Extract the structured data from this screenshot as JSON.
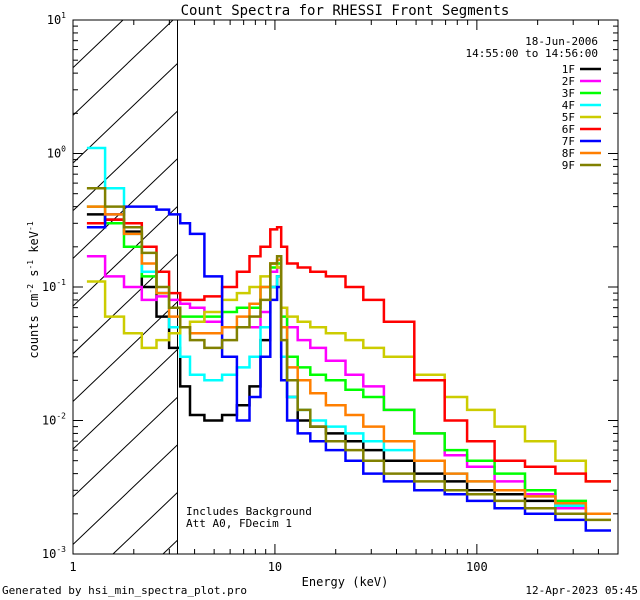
{
  "chart_data": {
    "type": "line",
    "title": "Count Spectra for RHESSI Front Segments",
    "xlabel": "Energy (keV)",
    "ylabel_base": "counts cm",
    "ylabel_parts": [
      "counts cm",
      "-2",
      " s",
      "-1",
      " keV",
      "-1"
    ],
    "x_scale": "log",
    "y_scale": "log",
    "xlim": [
      1,
      500
    ],
    "ylim": [
      0.001,
      10
    ],
    "x_ticks": [
      {
        "value": 1,
        "label": "1"
      },
      {
        "value": 10,
        "label": "10"
      },
      {
        "value": 100,
        "label": "100"
      }
    ],
    "y_ticks": [
      {
        "value": 0.001,
        "base": "10",
        "exp": "-3"
      },
      {
        "value": 0.01,
        "base": "10",
        "exp": "-2"
      },
      {
        "value": 0.1,
        "base": "10",
        "exp": "-1"
      },
      {
        "value": 1,
        "base": "10",
        "exp": "0"
      },
      {
        "value": 10,
        "base": "10",
        "exp": "1"
      }
    ],
    "date": "18-Jun-2006",
    "time_range": "14:55:00 to 14:56:00",
    "hatched_region_keV": [
      1,
      3
    ],
    "annotations": [
      "Includes Background",
      "Att A0, FDecim 1"
    ],
    "series": [
      {
        "name": "1F",
        "color": "#000000",
        "x": [
          1.3,
          1.6,
          2,
          2.4,
          2.8,
          3.2,
          3.6,
          4,
          5,
          6,
          7,
          8,
          9,
          10,
          10.5,
          11,
          12,
          14,
          16,
          20,
          25,
          30,
          40,
          60,
          80,
          100,
          150,
          200,
          300,
          400
        ],
        "y": [
          0.35,
          0.32,
          0.26,
          0.1,
          0.06,
          0.035,
          0.018,
          0.011,
          0.01,
          0.011,
          0.013,
          0.018,
          0.04,
          0.1,
          0.12,
          0.03,
          0.015,
          0.01,
          0.009,
          0.008,
          0.007,
          0.006,
          0.005,
          0.004,
          0.0035,
          0.003,
          0.0028,
          0.0025,
          0.0022,
          0.002
        ]
      },
      {
        "name": "2F",
        "color": "#ff00ff",
        "x": [
          1.3,
          1.6,
          2,
          2.4,
          2.8,
          3.2,
          3.6,
          4,
          5,
          6,
          7,
          8,
          9,
          10,
          10.5,
          11,
          12,
          14,
          16,
          20,
          25,
          30,
          40,
          60,
          80,
          100,
          150,
          200,
          300,
          400
        ],
        "y": [
          0.17,
          0.12,
          0.1,
          0.08,
          0.085,
          0.08,
          0.075,
          0.07,
          0.055,
          0.05,
          0.05,
          0.05,
          0.065,
          0.13,
          0.14,
          0.07,
          0.05,
          0.04,
          0.035,
          0.028,
          0.022,
          0.018,
          0.012,
          0.008,
          0.0055,
          0.0045,
          0.0035,
          0.0028,
          0.0022,
          0.002
        ]
      },
      {
        "name": "3F",
        "color": "#00ff00",
        "x": [
          1.3,
          1.6,
          2,
          2.4,
          2.8,
          3.2,
          3.6,
          4,
          5,
          6,
          7,
          8,
          9,
          10,
          10.5,
          11,
          12,
          14,
          16,
          20,
          25,
          30,
          40,
          60,
          80,
          100,
          150,
          200,
          300,
          400
        ],
        "y": [
          0.4,
          0.3,
          0.2,
          0.12,
          0.09,
          0.07,
          0.06,
          0.06,
          0.06,
          0.065,
          0.07,
          0.07,
          0.1,
          0.14,
          0.15,
          0.06,
          0.03,
          0.025,
          0.022,
          0.02,
          0.017,
          0.015,
          0.012,
          0.008,
          0.006,
          0.005,
          0.004,
          0.003,
          0.0025,
          0.002
        ]
      },
      {
        "name": "4F",
        "color": "#00ffff",
        "x": [
          1.3,
          1.6,
          2,
          2.4,
          2.8,
          3.2,
          3.6,
          4,
          5,
          6,
          7,
          8,
          9,
          10,
          10.5,
          11,
          12,
          14,
          16,
          20,
          25,
          30,
          40,
          60,
          80,
          100,
          150,
          200,
          300,
          400
        ],
        "y": [
          1.1,
          0.55,
          0.25,
          0.13,
          0.09,
          0.05,
          0.03,
          0.022,
          0.02,
          0.022,
          0.025,
          0.03,
          0.05,
          0.1,
          0.12,
          0.03,
          0.015,
          0.012,
          0.01,
          0.009,
          0.008,
          0.007,
          0.006,
          0.005,
          0.004,
          0.0035,
          0.003,
          0.0027,
          0.0023,
          0.002
        ]
      },
      {
        "name": "5F",
        "color": "#cccc00",
        "x": [
          1.3,
          1.6,
          2,
          2.4,
          2.8,
          3.2,
          3.6,
          4,
          5,
          6,
          7,
          8,
          9,
          10,
          10.5,
          11,
          12,
          14,
          16,
          20,
          25,
          30,
          40,
          60,
          80,
          100,
          150,
          200,
          300,
          400
        ],
        "y": [
          0.11,
          0.06,
          0.045,
          0.035,
          0.04,
          0.045,
          0.05,
          0.055,
          0.065,
          0.08,
          0.09,
          0.1,
          0.12,
          0.15,
          0.14,
          0.07,
          0.06,
          0.055,
          0.05,
          0.045,
          0.04,
          0.035,
          0.03,
          0.022,
          0.015,
          0.012,
          0.009,
          0.007,
          0.005,
          0.0035
        ]
      },
      {
        "name": "6F",
        "color": "#ff0000",
        "x": [
          1.3,
          1.6,
          2,
          2.4,
          2.8,
          3.2,
          3.6,
          4,
          5,
          6,
          7,
          8,
          9,
          10,
          10.5,
          11,
          12,
          14,
          16,
          20,
          25,
          30,
          40,
          60,
          80,
          100,
          150,
          200,
          300,
          400
        ],
        "y": [
          0.3,
          0.32,
          0.3,
          0.2,
          0.13,
          0.09,
          0.08,
          0.08,
          0.085,
          0.1,
          0.13,
          0.17,
          0.2,
          0.27,
          0.28,
          0.2,
          0.15,
          0.14,
          0.13,
          0.12,
          0.1,
          0.08,
          0.055,
          0.02,
          0.01,
          0.007,
          0.005,
          0.0045,
          0.004,
          0.0035
        ]
      },
      {
        "name": "7F",
        "color": "#0000ff",
        "x": [
          1.3,
          1.6,
          2,
          2.4,
          2.8,
          3.2,
          3.6,
          4,
          5,
          6,
          7,
          8,
          9,
          10,
          10.5,
          11,
          12,
          14,
          16,
          20,
          25,
          30,
          40,
          60,
          80,
          100,
          150,
          200,
          300,
          400
        ],
        "y": [
          0.28,
          0.35,
          0.4,
          0.4,
          0.38,
          0.35,
          0.3,
          0.25,
          0.12,
          0.03,
          0.01,
          0.015,
          0.03,
          0.08,
          0.1,
          0.02,
          0.01,
          0.008,
          0.007,
          0.006,
          0.005,
          0.004,
          0.0035,
          0.003,
          0.0028,
          0.0025,
          0.0022,
          0.002,
          0.0018,
          0.0015
        ]
      },
      {
        "name": "8F",
        "color": "#ff7f00",
        "x": [
          1.3,
          1.6,
          2,
          2.4,
          2.8,
          3.2,
          3.6,
          4,
          5,
          6,
          7,
          8,
          9,
          10,
          10.5,
          11,
          12,
          14,
          16,
          20,
          25,
          30,
          40,
          60,
          80,
          100,
          150,
          200,
          300,
          400
        ],
        "y": [
          0.4,
          0.35,
          0.25,
          0.15,
          0.09,
          0.06,
          0.05,
          0.045,
          0.045,
          0.05,
          0.06,
          0.075,
          0.1,
          0.15,
          0.16,
          0.05,
          0.025,
          0.02,
          0.016,
          0.013,
          0.011,
          0.009,
          0.007,
          0.005,
          0.004,
          0.0035,
          0.003,
          0.0027,
          0.0024,
          0.002
        ]
      },
      {
        "name": "9F",
        "color": "#808000",
        "x": [
          1.3,
          1.6,
          2,
          2.4,
          2.8,
          3.2,
          3.6,
          4,
          5,
          6,
          7,
          8,
          9,
          10,
          10.5,
          11,
          12,
          14,
          16,
          20,
          25,
          30,
          40,
          60,
          80,
          100,
          150,
          200,
          300,
          400
        ],
        "y": [
          0.55,
          0.4,
          0.28,
          0.18,
          0.1,
          0.07,
          0.05,
          0.04,
          0.035,
          0.04,
          0.05,
          0.06,
          0.08,
          0.15,
          0.17,
          0.04,
          0.02,
          0.012,
          0.009,
          0.007,
          0.006,
          0.005,
          0.004,
          0.0035,
          0.003,
          0.0028,
          0.0025,
          0.0022,
          0.002,
          0.0018
        ]
      }
    ]
  },
  "footer": {
    "generated_by": "Generated by hsi_min_spectra_plot.pro",
    "timestamp": "12-Apr-2023 05:45"
  }
}
